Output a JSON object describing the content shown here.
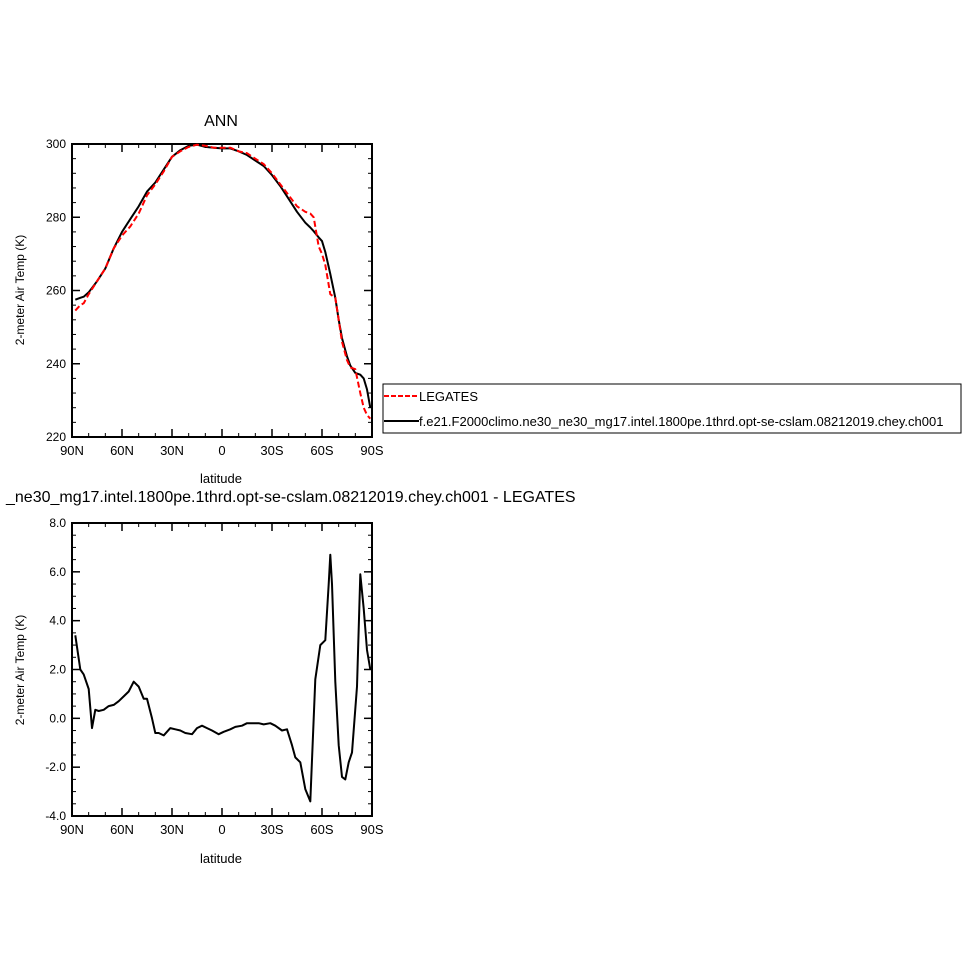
{
  "chart_data": [
    {
      "type": "line",
      "title": "ANN",
      "xlabel": "latitude",
      "ylabel": "2-meter Air Temp (K)",
      "xlim": [
        90,
        -90
      ],
      "ylim": [
        220,
        300
      ],
      "x_ticks": [
        90,
        60,
        30,
        0,
        -30,
        -60,
        -90
      ],
      "x_tick_labels": [
        "90N",
        "60N",
        "30N",
        "0",
        "30S",
        "60S",
        "90S"
      ],
      "y_ticks": [
        220,
        240,
        260,
        280,
        300
      ],
      "y_tick_labels": [
        "220",
        "240",
        "260",
        "280",
        "300"
      ],
      "legend_position": "right",
      "series": [
        {
          "name": "LEGATES",
          "color": "#ff0000",
          "dash": "dashed",
          "x": [
            88,
            85,
            83,
            80,
            75,
            70,
            65,
            60,
            55,
            50,
            45,
            40,
            35,
            30,
            25,
            20,
            15,
            10,
            5,
            0,
            -5,
            -10,
            -15,
            -20,
            -25,
            -30,
            -35,
            -40,
            -45,
            -50,
            -53,
            -55,
            -58,
            -60,
            -62,
            -65,
            -68,
            -70,
            -72,
            -75,
            -77,
            -80,
            -83,
            -85,
            -87,
            -89
          ],
          "values": [
            254.5,
            256,
            256.5,
            259,
            262.5,
            266,
            271.5,
            275,
            277.5,
            281,
            286,
            289,
            292.5,
            296.5,
            298,
            299.2,
            299.8,
            299.5,
            299,
            299,
            299,
            298,
            297.5,
            296,
            294.5,
            292,
            289,
            286,
            283,
            281.5,
            281,
            280,
            272,
            270,
            267,
            259,
            258,
            252,
            246,
            241,
            239,
            238.5,
            232,
            228,
            226,
            225
          ]
        },
        {
          "name": "f.e21.F2000climo.ne30_ne30_mg17.intel.1800pe.1thrd.opt-se-cslam.08212019.chey.ch001",
          "color": "#000000",
          "dash": "solid",
          "x": [
            88,
            85,
            83,
            80,
            75,
            70,
            65,
            60,
            55,
            50,
            45,
            40,
            35,
            30,
            25,
            20,
            15,
            10,
            5,
            0,
            -5,
            -10,
            -15,
            -20,
            -25,
            -30,
            -35,
            -40,
            -45,
            -50,
            -53,
            -55,
            -58,
            -60,
            -62,
            -65,
            -68,
            -70,
            -72,
            -75,
            -77,
            -80,
            -83,
            -85,
            -87,
            -89
          ],
          "values": [
            257.5,
            258,
            258.3,
            259.5,
            262.5,
            266,
            271.5,
            276,
            279.5,
            283,
            287,
            289.5,
            293,
            296.5,
            298.3,
            299.5,
            299.8,
            299.2,
            299,
            298.8,
            298.8,
            298,
            297,
            295.5,
            294,
            291.5,
            288.5,
            285,
            281.5,
            278.5,
            277.2,
            276.2,
            274.5,
            273.5,
            270.5,
            264.5,
            258,
            252,
            247,
            242,
            239.5,
            237.5,
            237,
            236,
            233,
            228
          ]
        }
      ]
    },
    {
      "type": "line",
      "title": "_ne30_mg17.intel.1800pe.1thrd.opt-se-cslam.08212019.chey.ch001 - LEGATES",
      "xlabel": "latitude",
      "ylabel": "2-meter Air Temp (K)",
      "xlim": [
        90,
        -90
      ],
      "ylim": [
        -4.0,
        8.0
      ],
      "x_ticks": [
        90,
        60,
        30,
        0,
        -30,
        -60,
        -90
      ],
      "x_tick_labels": [
        "90N",
        "60N",
        "30N",
        "0",
        "30S",
        "60S",
        "90S"
      ],
      "y_ticks": [
        -4.0,
        -2.0,
        0.0,
        2.0,
        4.0,
        6.0,
        8.0
      ],
      "y_tick_labels": [
        "-4.0",
        "-2.0",
        "0.0",
        "2.0",
        "4.0",
        "6.0",
        "8.0"
      ],
      "series": [
        {
          "color": "#000000",
          "dash": "solid",
          "x": [
            88,
            85,
            83,
            80,
            78,
            76,
            74,
            71,
            68,
            65,
            62,
            59,
            56,
            53,
            50,
            47,
            45,
            42,
            40,
            38,
            35,
            31,
            28,
            25,
            22,
            18,
            15,
            12,
            9,
            6,
            2,
            -1,
            -5,
            -8,
            -12,
            -15,
            -19,
            -22,
            -25,
            -29,
            -32,
            -36,
            -39,
            -42,
            -44,
            -47,
            -50,
            -53,
            -56,
            -59,
            -62,
            -64,
            -65,
            -66,
            -68,
            -70,
            -72,
            -74,
            -76,
            -78,
            -81,
            -83,
            -85,
            -87,
            -89
          ],
          "values": [
            3.4,
            2.0,
            1.8,
            1.2,
            -0.4,
            0.35,
            0.3,
            0.35,
            0.5,
            0.55,
            0.7,
            0.9,
            1.1,
            1.5,
            1.3,
            0.8,
            0.8,
            0.0,
            -0.6,
            -0.6,
            -0.7,
            -0.4,
            -0.45,
            -0.5,
            -0.6,
            -0.65,
            -0.4,
            -0.3,
            -0.4,
            -0.5,
            -0.65,
            -0.55,
            -0.45,
            -0.35,
            -0.3,
            -0.2,
            -0.2,
            -0.2,
            -0.25,
            -0.2,
            -0.3,
            -0.5,
            -0.45,
            -1.1,
            -1.6,
            -1.8,
            -2.9,
            -3.4,
            1.6,
            3.0,
            3.2,
            5.5,
            6.7,
            5.5,
            1.5,
            -1.1,
            -2.4,
            -2.5,
            -1.8,
            -1.4,
            1.3,
            5.9,
            4.5,
            2.8,
            2.0
          ]
        }
      ]
    }
  ]
}
